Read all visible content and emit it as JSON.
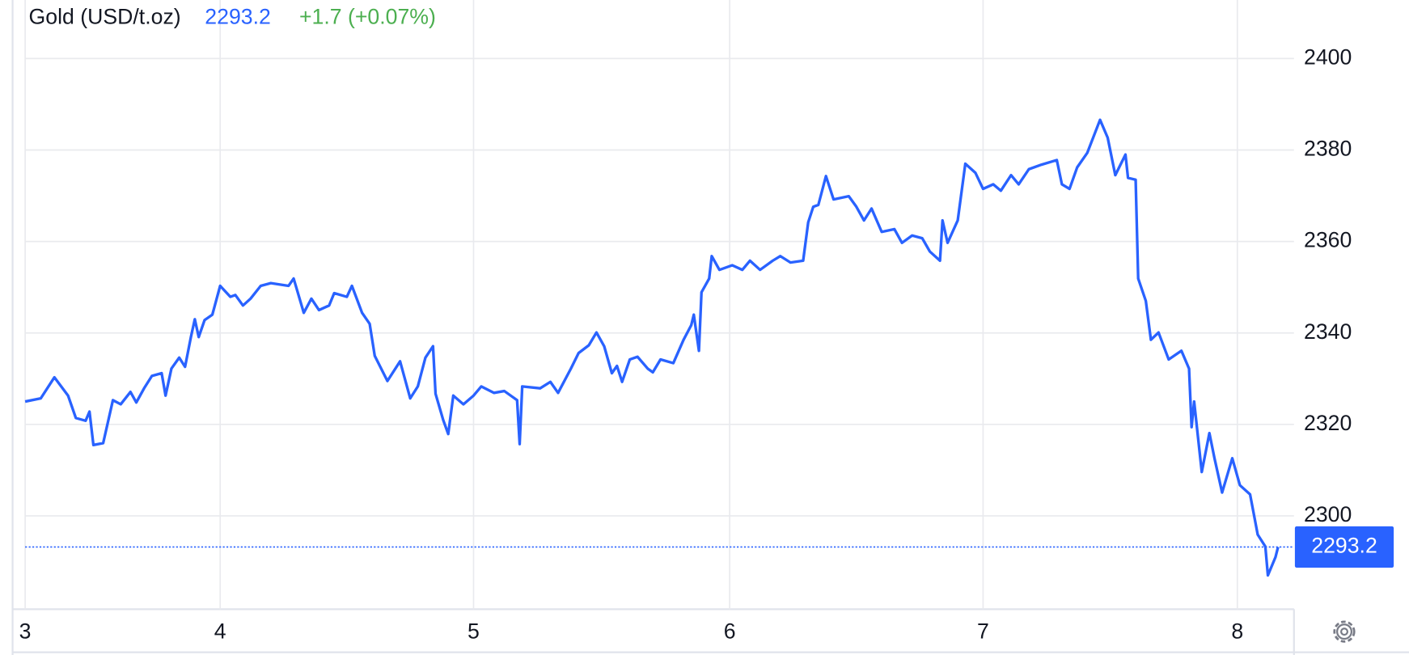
{
  "chart_data": {
    "type": "line",
    "title": "Gold (USD/t.oz)",
    "last_price": 2293.2,
    "change_label": "+1.7 (+0.07%)",
    "color": "#2962ff",
    "grid": true,
    "xlim": [
      3,
      8.22
    ],
    "xticks": [
      3,
      4,
      5,
      6,
      7,
      8
    ],
    "ylim": [
      2279.6,
      2412.8
    ],
    "yticks": [
      2300,
      2320,
      2340,
      2360,
      2380,
      2400
    ],
    "x": [
      3.0,
      3.08,
      3.15,
      3.22,
      3.26,
      3.31,
      3.33,
      3.35,
      3.4,
      3.45,
      3.49,
      3.54,
      3.57,
      3.61,
      3.65,
      3.7,
      3.72,
      3.75,
      3.79,
      3.82,
      3.85,
      3.87,
      3.89,
      3.92,
      3.96,
      4.0,
      4.04,
      4.06,
      4.09,
      4.12,
      4.16,
      4.2,
      4.27,
      4.29,
      4.33,
      4.36,
      4.39,
      4.43,
      4.45,
      4.5,
      4.52,
      4.56,
      4.59,
      4.61,
      4.66,
      4.71,
      4.75,
      4.78,
      4.81,
      4.84,
      4.85,
      4.88,
      4.9,
      4.92,
      4.96,
      5.0,
      5.03,
      5.08,
      5.12,
      5.17,
      5.18,
      5.19,
      5.26,
      5.3,
      5.33,
      5.38,
      5.41,
      5.45,
      5.48,
      5.51,
      5.54,
      5.56,
      5.58,
      5.61,
      5.64,
      5.68,
      5.7,
      5.73,
      5.78,
      5.82,
      5.85,
      5.86,
      5.88,
      5.89,
      5.92,
      5.93,
      5.96,
      6.01,
      6.05,
      6.08,
      6.12,
      6.17,
      6.2,
      6.24,
      6.29,
      6.31,
      6.33,
      6.35,
      6.38,
      6.41,
      6.47,
      6.5,
      6.53,
      6.56,
      6.6,
      6.65,
      6.68,
      6.72,
      6.76,
      6.79,
      6.83,
      6.84,
      6.86,
      6.9,
      6.93,
      6.97,
      7.0,
      7.04,
      7.07,
      7.11,
      7.14,
      7.18,
      7.23,
      7.29,
      7.31,
      7.34,
      7.37,
      7.41,
      7.46,
      7.49,
      7.52,
      7.56,
      7.57,
      7.6,
      7.61,
      7.64,
      7.66,
      7.69,
      7.73,
      7.78,
      7.81,
      7.82,
      7.83,
      7.86,
      7.89,
      7.91,
      7.94,
      7.98,
      8.01,
      8.05,
      8.08,
      8.11,
      8.12,
      8.15,
      8.16
    ],
    "values": [
      2325.0,
      2325.7,
      2330.3,
      2326.3,
      2321.4,
      2320.8,
      2322.8,
      2315.5,
      2315.9,
      2325.3,
      2324.4,
      2327.1,
      2324.8,
      2327.9,
      2330.6,
      2331.2,
      2326.3,
      2332.2,
      2334.6,
      2332.6,
      2339.1,
      2343.0,
      2339.1,
      2342.8,
      2344.0,
      2350.3,
      2347.9,
      2348.3,
      2346.0,
      2347.5,
      2350.3,
      2350.9,
      2350.3,
      2351.9,
      2344.4,
      2347.5,
      2345.0,
      2346.0,
      2348.7,
      2347.9,
      2350.3,
      2344.4,
      2342.0,
      2335.0,
      2329.5,
      2333.8,
      2325.7,
      2328.3,
      2334.6,
      2337.1,
      2326.7,
      2321.0,
      2317.9,
      2326.3,
      2324.4,
      2326.3,
      2328.3,
      2326.9,
      2327.3,
      2325.3,
      2315.7,
      2328.3,
      2327.9,
      2329.3,
      2326.9,
      2332.2,
      2335.6,
      2337.3,
      2340.1,
      2337.1,
      2331.2,
      2332.8,
      2329.3,
      2334.2,
      2334.8,
      2332.2,
      2331.4,
      2334.2,
      2333.4,
      2338.5,
      2341.7,
      2344.0,
      2336.1,
      2348.9,
      2351.9,
      2356.8,
      2353.8,
      2354.8,
      2353.8,
      2355.8,
      2353.8,
      2355.8,
      2356.8,
      2355.4,
      2355.8,
      2364.2,
      2367.6,
      2368.0,
      2374.3,
      2369.2,
      2369.9,
      2367.6,
      2364.6,
      2367.2,
      2362.1,
      2362.7,
      2359.7,
      2361.3,
      2360.7,
      2357.8,
      2355.8,
      2364.6,
      2359.7,
      2364.6,
      2377.0,
      2375.0,
      2371.5,
      2372.5,
      2371.1,
      2374.5,
      2372.5,
      2375.8,
      2376.8,
      2377.8,
      2372.5,
      2371.5,
      2376.2,
      2379.4,
      2386.6,
      2382.7,
      2374.5,
      2379.0,
      2373.9,
      2373.5,
      2351.9,
      2347.0,
      2338.5,
      2340.1,
      2334.2,
      2336.1,
      2332.2,
      2319.4,
      2325.0,
      2309.6,
      2318.1,
      2312.6,
      2305.1,
      2312.6,
      2306.7,
      2304.7,
      2295.9,
      2293.3,
      2287.0,
      2291.0,
      2293.2
    ]
  }
}
